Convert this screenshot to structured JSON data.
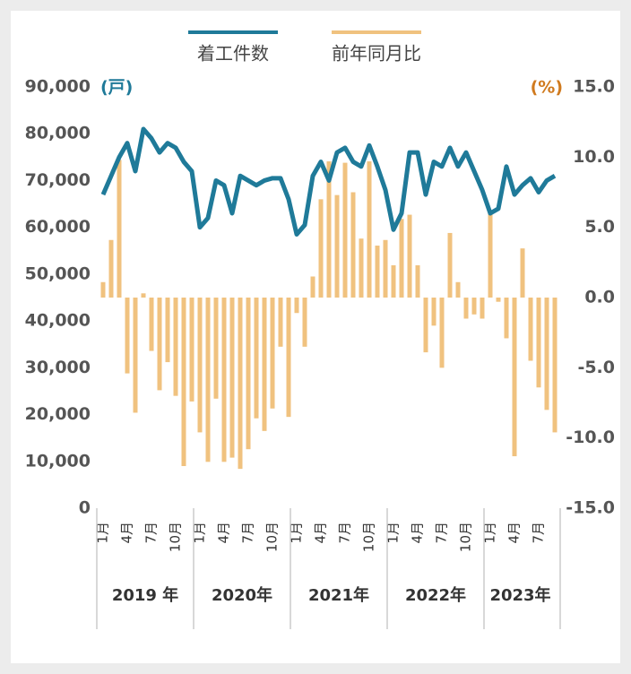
{
  "chart_data": {
    "type": "bar-line",
    "categories": [
      "1月",
      null,
      null,
      "4月",
      null,
      null,
      "7月",
      null,
      null,
      "10月",
      null,
      null,
      "1月",
      null,
      null,
      "4月",
      null,
      null,
      "7月",
      null,
      null,
      "10月",
      null,
      null,
      "1月",
      null,
      null,
      "4月",
      null,
      null,
      "7月",
      null,
      null,
      "10月",
      null,
      null,
      "1月",
      null,
      null,
      "4月",
      null,
      null,
      "7月",
      null,
      null,
      "10月",
      null,
      null,
      "1月",
      null,
      null,
      "4月",
      null,
      null,
      "7月",
      null,
      null
    ],
    "year_labels": [
      "2019 年",
      "2020年",
      "2021年",
      "2022年",
      "2023年"
    ],
    "series": [
      {
        "name": "着工件数",
        "type": "line",
        "color": "#1f7a99",
        "axis": "y",
        "values": [
          67000,
          71000,
          75000,
          78000,
          72000,
          81000,
          79000,
          76000,
          78000,
          77000,
          74000,
          72000,
          60000,
          62000,
          70000,
          69000,
          63000,
          71000,
          70000,
          69000,
          70000,
          70500,
          70500,
          66000,
          58500,
          60500,
          71000,
          74000,
          70000,
          76000,
          77000,
          74000,
          73000,
          77500,
          73000,
          68000,
          59500,
          63000,
          76000,
          76000,
          67000,
          74000,
          73000,
          77000,
          73000,
          76000,
          72000,
          68000,
          63000,
          64000,
          73000,
          67000,
          69000,
          70500,
          67500,
          70000,
          71000
        ]
      },
      {
        "name": "前年同月比",
        "type": "bar",
        "color": "#f0c27f",
        "axis": "y2",
        "values": [
          1.1,
          4.1,
          9.8,
          -5.4,
          -8.2,
          0.3,
          -3.8,
          -6.6,
          -4.6,
          -7.0,
          -12.0,
          -7.4,
          -9.6,
          -11.7,
          -7.2,
          -11.7,
          -11.4,
          -12.2,
          -10.8,
          -8.6,
          -9.5,
          -7.9,
          -3.5,
          -8.5,
          -1.1,
          -3.5,
          1.5,
          7.0,
          9.7,
          7.3,
          9.6,
          7.5,
          4.2,
          9.7,
          3.7,
          4.1,
          2.3,
          5.6,
          5.9,
          2.3,
          -3.9,
          -2.0,
          -5.0,
          4.6,
          1.1,
          -1.5,
          -1.2,
          -1.5,
          6.1,
          -0.3,
          -2.9,
          -11.3,
          3.5,
          -4.5,
          -6.4,
          -8.0,
          -9.6
        ]
      }
    ],
    "ylabel": "(戸)",
    "y2label": "(%)",
    "ylim": [
      0,
      90000
    ],
    "yticks": [
      0,
      {
        "value": 10000,
        "label": "10,000"
      },
      {
        "value": 20000,
        "label": "20,000"
      },
      {
        "value": 30000,
        "label": "30,000"
      },
      {
        "value": 40000,
        "label": "40,000"
      },
      {
        "value": 50000,
        "label": "50,000"
      },
      {
        "value": 60000,
        "label": "60,000"
      },
      {
        "value": 70000,
        "label": "70,000"
      },
      {
        "value": 80000,
        "label": "80,000"
      },
      {
        "value": 90000,
        "label": "90,000"
      }
    ],
    "y2lim": [
      -15,
      15
    ],
    "y2ticks": [
      {
        "value": -15,
        "label": "-15.0"
      },
      {
        "value": -10,
        "label": "-10.0"
      },
      {
        "value": -5,
        "label": "-5.0"
      },
      {
        "value": 0,
        "label": "0.0"
      },
      {
        "value": 5,
        "label": "5.0"
      },
      {
        "value": 10,
        "label": "10.0"
      },
      {
        "value": 15,
        "label": "15.0"
      }
    ],
    "grid": false
  }
}
